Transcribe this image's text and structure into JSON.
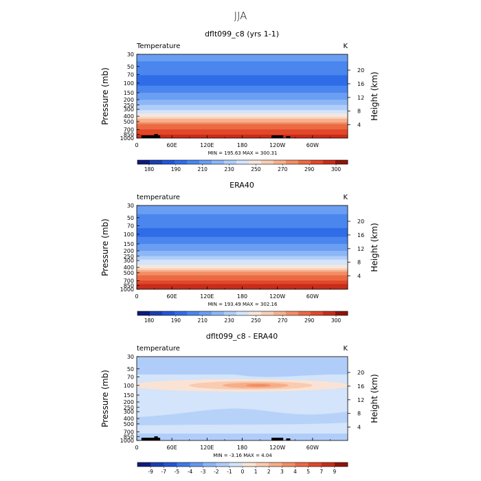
{
  "page_title": "JJA",
  "colors": {
    "abs_scale": [
      "#0d1b7a",
      "#1a3fb0",
      "#2256d8",
      "#2f6ce8",
      "#4a86ee",
      "#6a9ef2",
      "#8db6f6",
      "#b0cdf9",
      "#d3e4fb",
      "#f7e6dc",
      "#f9cdb6",
      "#f6b08c",
      "#f28d64",
      "#ec6a43",
      "#e2472a",
      "#c72d1a",
      "#8e1508"
    ],
    "diff_scale": [
      "#0d1b7a",
      "#1a3fb0",
      "#2256d8",
      "#3d79ea",
      "#6498f1",
      "#8db6f6",
      "#b0cdf9",
      "#d3e4fb",
      "#fae3d4",
      "#f9cbb0",
      "#f6ad88",
      "#f28d64",
      "#ec6a43",
      "#e2472a",
      "#c72d1a",
      "#8e1508"
    ],
    "terrain": "#000000"
  },
  "chart_data": [
    {
      "type": "heatmap",
      "title": "dflt099_c8 (yrs 1-1)",
      "left_label": "Temperature",
      "units": "K",
      "ylabel": "Pressure (mb)",
      "ylabel_right": "Height (km)",
      "x_ticks": [
        "0",
        "60E",
        "120E",
        "180",
        "120W",
        "60W"
      ],
      "xlim": [
        0,
        360
      ],
      "y_ticks": [
        "30",
        "50",
        "70",
        "100",
        "150",
        "200",
        "250",
        "300",
        "400",
        "500",
        "700",
        "850",
        "1000"
      ],
      "ylim_mb": [
        30,
        1000
      ],
      "height_ticks": [
        "20",
        "16",
        "12",
        "8",
        "4"
      ],
      "stats": "MIN = 195.63  MAX = 300.31",
      "colorbar_labels": [
        "180",
        "190",
        "210",
        "230",
        "250",
        "270",
        "290",
        "300"
      ]
    },
    {
      "type": "heatmap",
      "title": "ERA40",
      "left_label": "temperature",
      "units": "K",
      "ylabel": "Pressure (mb)",
      "ylabel_right": "Height (km)",
      "x_ticks": [
        "0",
        "60E",
        "120E",
        "180",
        "120W",
        "60W"
      ],
      "xlim": [
        0,
        360
      ],
      "y_ticks": [
        "30",
        "50",
        "70",
        "100",
        "150",
        "200",
        "250",
        "300",
        "400",
        "500",
        "700",
        "850",
        "1000"
      ],
      "ylim_mb": [
        30,
        1000
      ],
      "height_ticks": [
        "20",
        "16",
        "12",
        "8",
        "4"
      ],
      "stats": "MIN = 193.49  MAX = 302.16",
      "colorbar_labels": [
        "180",
        "190",
        "210",
        "230",
        "250",
        "270",
        "290",
        "300"
      ]
    },
    {
      "type": "heatmap",
      "title": "dflt099_c8 - ERA40",
      "left_label": "temperature",
      "units": "K",
      "ylabel": "Pressure (mb)",
      "ylabel_right": "Height (km)",
      "x_ticks": [
        "0",
        "60E",
        "120E",
        "180",
        "120W",
        "60W"
      ],
      "xlim": [
        0,
        360
      ],
      "y_ticks": [
        "30",
        "50",
        "70",
        "100",
        "150",
        "200",
        "250",
        "300",
        "400",
        "500",
        "700",
        "850",
        "1000"
      ],
      "ylim_mb": [
        30,
        1000
      ],
      "height_ticks": [
        "20",
        "16",
        "12",
        "8",
        "4"
      ],
      "stats": "MIN = -3.16  MAX = 4.04",
      "colorbar_labels": [
        "-9",
        "-7",
        "-5",
        "-4",
        "-3",
        "-2",
        "-1",
        "0",
        "1",
        "2",
        "3",
        "4",
        "5",
        "7",
        "9"
      ]
    }
  ]
}
